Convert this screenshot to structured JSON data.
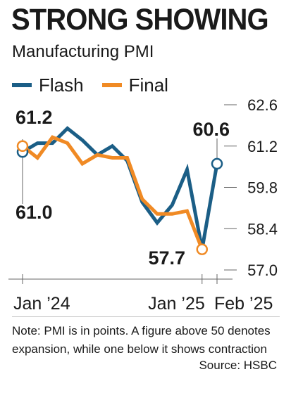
{
  "title": "STRONG SHOWING",
  "subtitle": "Manufacturing PMI",
  "note": "Note: PMI is in points. A figure above 50 denotes expansion, while one below it shows contraction",
  "source": "Source: HSBC",
  "colors": {
    "flash": "#1b5e86",
    "final": "#f08a24",
    "text": "#1a1a1a",
    "axis": "#666666"
  },
  "chart_data": {
    "type": "line",
    "title": "STRONG SHOWING",
    "subtitle": "Manufacturing PMI",
    "legend_position": "top-left",
    "grid": false,
    "x": [
      0,
      1,
      2,
      3,
      4,
      5,
      6,
      7,
      8,
      9,
      10,
      11,
      12,
      13
    ],
    "x_tick_labels": [
      {
        "x": 0,
        "label": "Jan ’24"
      },
      {
        "x": 12,
        "label": "Jan ’25"
      },
      {
        "x": 13,
        "label": "Feb ’25"
      }
    ],
    "ylim": [
      57.0,
      62.6
    ],
    "yticks": [
      57.0,
      58.4,
      59.8,
      61.2,
      62.6
    ],
    "y_axis_position": "right",
    "series": [
      {
        "name": "Flash",
        "values": [
          61.0,
          61.3,
          61.3,
          61.8,
          61.4,
          60.9,
          61.2,
          60.7,
          59.3,
          58.6,
          59.2,
          60.4,
          57.7,
          60.6
        ]
      },
      {
        "name": "Final",
        "values": [
          61.2,
          60.8,
          61.5,
          61.3,
          60.6,
          60.9,
          60.8,
          60.8,
          59.4,
          58.9,
          58.9,
          59.0,
          57.7,
          null
        ]
      }
    ],
    "data_labels": [
      {
        "series": "Final",
        "x": 0,
        "label": "61.2"
      },
      {
        "series": "Flash",
        "x": 0,
        "label": "61.0"
      },
      {
        "series": "Flash",
        "x": 13,
        "label": "60.6"
      },
      {
        "series": "Final",
        "x": 12,
        "label": "57.7"
      }
    ]
  }
}
